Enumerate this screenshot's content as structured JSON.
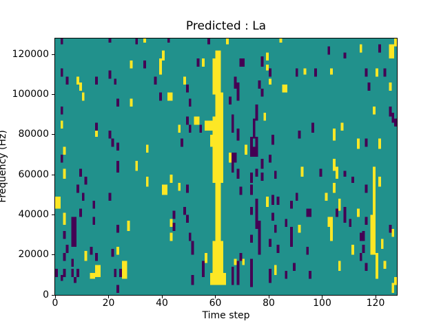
{
  "title": "Predicted : La",
  "xlabel": "Time step",
  "ylabel": "Frequency (Hz)",
  "chart_data": {
    "type": "heatmap",
    "title": "Predicted : La",
    "xlabel": "Time step",
    "ylabel": "Frequency (Hz)",
    "x_range": [
      0,
      128
    ],
    "y_range": [
      0,
      128000
    ],
    "grid_size": [
      128,
      128
    ],
    "x_ticks": [
      0,
      20,
      40,
      60,
      80,
      100,
      120
    ],
    "x_tick_labels": [
      "0",
      "20",
      "40",
      "60",
      "80",
      "100",
      "120"
    ],
    "y_ticks": [
      0,
      20000,
      40000,
      60000,
      80000,
      100000,
      120000
    ],
    "y_tick_labels": [
      "0",
      "20000",
      "40000",
      "60000",
      "80000",
      "100000",
      "120000"
    ],
    "legend": "none",
    "grid": false,
    "colors": {
      "background": "#21918c",
      "low": "#440154",
      "high": "#fde725",
      "figure_background": "#ffffff",
      "text": "#000000"
    },
    "value_legend": {
      "background_value": "mid",
      "low_value": "min",
      "high_value": "max"
    },
    "cells_high": [
      [
        60,
        61,
        117,
        121
      ],
      [
        59,
        61,
        100,
        117
      ],
      [
        60,
        62,
        88,
        100
      ],
      [
        59,
        62,
        56,
        88
      ],
      [
        60,
        61,
        26,
        56
      ],
      [
        59,
        62,
        10,
        26
      ],
      [
        58,
        63,
        5,
        10
      ],
      [
        33,
        33,
        126,
        127
      ],
      [
        40,
        40,
        117,
        121
      ],
      [
        39,
        39,
        110,
        117
      ],
      [
        28,
        28,
        113,
        116
      ],
      [
        8,
        8,
        105,
        108
      ],
      [
        9,
        9,
        102,
        105
      ],
      [
        10,
        10,
        97,
        100
      ],
      [
        28,
        28,
        94,
        97
      ],
      [
        42,
        43,
        97,
        100
      ],
      [
        2,
        2,
        83,
        86
      ],
      [
        15,
        15,
        79,
        81
      ],
      [
        3,
        3,
        70,
        73
      ],
      [
        34,
        34,
        71,
        74
      ],
      [
        30,
        30,
        62,
        66
      ],
      [
        64,
        64,
        125,
        127
      ],
      [
        84,
        84,
        126,
        127
      ],
      [
        55,
        55,
        114,
        117
      ],
      [
        79,
        79,
        117,
        120
      ],
      [
        79,
        79,
        112,
        114
      ],
      [
        48,
        48,
        105,
        108
      ],
      [
        80,
        80,
        105,
        107
      ],
      [
        85,
        86,
        101,
        104
      ],
      [
        78,
        78,
        87,
        90
      ],
      [
        52,
        53,
        85,
        88
      ],
      [
        46,
        46,
        81,
        84
      ],
      [
        56,
        58,
        82,
        86
      ],
      [
        58,
        58,
        74,
        79
      ],
      [
        71,
        71,
        70,
        74
      ],
      [
        65,
        65,
        66,
        70
      ],
      [
        43,
        43,
        56,
        59
      ],
      [
        46,
        46,
        52,
        55
      ],
      [
        56,
        56,
        16,
        20
      ],
      [
        67,
        67,
        15,
        17
      ],
      [
        70,
        70,
        15,
        17
      ],
      [
        79,
        79,
        44,
        48
      ],
      [
        82,
        82,
        10,
        14
      ],
      [
        43,
        43,
        34,
        37
      ],
      [
        43,
        43,
        27,
        30
      ],
      [
        114,
        114,
        121,
        124
      ],
      [
        125,
        126,
        118,
        124
      ],
      [
        127,
        127,
        124,
        127
      ],
      [
        93,
        93,
        110,
        112
      ],
      [
        103,
        103,
        110,
        112
      ],
      [
        120,
        120,
        109,
        112
      ],
      [
        86,
        86,
        102,
        104
      ],
      [
        125,
        125,
        102,
        105
      ],
      [
        119,
        119,
        90,
        93
      ],
      [
        107,
        107,
        82,
        85
      ],
      [
        104,
        104,
        77,
        82
      ],
      [
        113,
        113,
        73,
        77
      ],
      [
        121,
        121,
        73,
        77
      ],
      [
        104,
        104,
        64,
        67
      ],
      [
        3,
        3,
        58,
        62
      ],
      [
        34,
        34,
        54,
        58
      ],
      [
        40,
        41,
        50,
        54
      ],
      [
        0,
        1,
        43,
        48
      ],
      [
        3,
        3,
        35,
        40
      ],
      [
        27,
        27,
        32,
        36
      ],
      [
        11,
        11,
        17,
        21
      ],
      [
        23,
        23,
        20,
        23
      ],
      [
        15,
        16,
        9,
        14
      ],
      [
        25,
        26,
        8,
        16
      ],
      [
        13,
        14,
        8,
        10
      ],
      [
        92,
        92,
        59,
        63
      ],
      [
        104,
        104,
        62,
        66
      ],
      [
        105,
        105,
        58,
        63
      ],
      [
        121,
        121,
        54,
        58
      ],
      [
        119,
        119,
        37,
        63
      ],
      [
        118,
        119,
        20,
        39
      ],
      [
        120,
        120,
        8,
        20
      ],
      [
        104,
        104,
        51,
        55
      ],
      [
        101,
        101,
        47,
        50
      ],
      [
        106,
        106,
        42,
        47
      ],
      [
        102,
        103,
        34,
        38
      ],
      [
        103,
        103,
        27,
        34
      ],
      [
        113,
        113,
        39,
        42
      ],
      [
        118,
        118,
        36,
        38
      ],
      [
        91,
        91,
        31,
        34
      ],
      [
        111,
        111,
        20,
        24
      ],
      [
        122,
        122,
        23,
        27
      ],
      [
        106,
        106,
        12,
        16
      ],
      [
        123,
        123,
        13,
        16
      ],
      [
        126,
        126,
        29,
        32
      ],
      [
        126,
        126,
        1,
        5
      ],
      [
        127,
        127,
        5,
        8
      ]
    ],
    "cells_low": [
      [
        2,
        2,
        125,
        127
      ],
      [
        30,
        30,
        125,
        127
      ],
      [
        20,
        20,
        126,
        127
      ],
      [
        42,
        42,
        126,
        127
      ],
      [
        33,
        33,
        113,
        116
      ],
      [
        2,
        2,
        109,
        112
      ],
      [
        4,
        4,
        105,
        108
      ],
      [
        15,
        15,
        105,
        108
      ],
      [
        20,
        20,
        108,
        111
      ],
      [
        22,
        22,
        105,
        107
      ],
      [
        37,
        37,
        105,
        108
      ],
      [
        39,
        39,
        97,
        100
      ],
      [
        23,
        23,
        94,
        97
      ],
      [
        2,
        2,
        90,
        93
      ],
      [
        15,
        15,
        82,
        85
      ],
      [
        20,
        20,
        78,
        81
      ],
      [
        21,
        21,
        74,
        77
      ],
      [
        23,
        23,
        72,
        75
      ],
      [
        2,
        2,
        66,
        69
      ],
      [
        23,
        23,
        61,
        66
      ],
      [
        57,
        57,
        125,
        127
      ],
      [
        53,
        53,
        114,
        117
      ],
      [
        69,
        70,
        114,
        117
      ],
      [
        77,
        77,
        114,
        118
      ],
      [
        80,
        80,
        109,
        112
      ],
      [
        49,
        49,
        101,
        104
      ],
      [
        67,
        67,
        103,
        108
      ],
      [
        68,
        68,
        97,
        105
      ],
      [
        76,
        76,
        103,
        106
      ],
      [
        77,
        77,
        99,
        102
      ],
      [
        65,
        65,
        95,
        98
      ],
      [
        50,
        50,
        94,
        97
      ],
      [
        75,
        75,
        87,
        94
      ],
      [
        74,
        74,
        78,
        87
      ],
      [
        73,
        73,
        71,
        78
      ],
      [
        75,
        75,
        73,
        78
      ],
      [
        73,
        75,
        69,
        73
      ],
      [
        49,
        49,
        85,
        88
      ],
      [
        50,
        50,
        81,
        84
      ],
      [
        54,
        54,
        81,
        84
      ],
      [
        66,
        66,
        81,
        89
      ],
      [
        68,
        68,
        77,
        82
      ],
      [
        47,
        47,
        74,
        77
      ],
      [
        81,
        81,
        75,
        79
      ],
      [
        66,
        67,
        66,
        70
      ],
      [
        80,
        80,
        66,
        69
      ],
      [
        77,
        77,
        63,
        67
      ],
      [
        102,
        102,
        120,
        123
      ],
      [
        121,
        121,
        121,
        124
      ],
      [
        108,
        108,
        118,
        120
      ],
      [
        90,
        90,
        109,
        112
      ],
      [
        97,
        97,
        109,
        112
      ],
      [
        116,
        116,
        109,
        112
      ],
      [
        123,
        123,
        109,
        112
      ],
      [
        117,
        117,
        102,
        105
      ],
      [
        125,
        125,
        89,
        93
      ],
      [
        126,
        126,
        86,
        90
      ],
      [
        127,
        127,
        84,
        87
      ],
      [
        96,
        96,
        81,
        85
      ],
      [
        91,
        91,
        78,
        81
      ],
      [
        116,
        116,
        74,
        77
      ],
      [
        9,
        9,
        59,
        62
      ],
      [
        11,
        11,
        55,
        58
      ],
      [
        8,
        8,
        51,
        54
      ],
      [
        10,
        10,
        47,
        50
      ],
      [
        20,
        20,
        47,
        50
      ],
      [
        14,
        14,
        43,
        46
      ],
      [
        9,
        9,
        39,
        42
      ],
      [
        6,
        7,
        24,
        38
      ],
      [
        14,
        14,
        35,
        38
      ],
      [
        23,
        23,
        31,
        34
      ],
      [
        3,
        3,
        28,
        31
      ],
      [
        4,
        4,
        21,
        24
      ],
      [
        3,
        3,
        17,
        20
      ],
      [
        6,
        6,
        14,
        17
      ],
      [
        13,
        13,
        20,
        23
      ],
      [
        15,
        15,
        17,
        20
      ],
      [
        21,
        21,
        19,
        22
      ],
      [
        22,
        22,
        9,
        12
      ],
      [
        24,
        24,
        9,
        12
      ],
      [
        3,
        3,
        9,
        12
      ],
      [
        0,
        0,
        9,
        12
      ],
      [
        6,
        6,
        9,
        12
      ],
      [
        8,
        8,
        9,
        12
      ],
      [
        23,
        23,
        1,
        4
      ],
      [
        2,
        2,
        7,
        9
      ],
      [
        7,
        7,
        6,
        8
      ],
      [
        49,
        49,
        51,
        54
      ],
      [
        44,
        44,
        38,
        41
      ],
      [
        48,
        48,
        40,
        43
      ],
      [
        49,
        49,
        36,
        39
      ],
      [
        44,
        44,
        32,
        35
      ],
      [
        50,
        50,
        27,
        30
      ],
      [
        51,
        51,
        20,
        26
      ],
      [
        55,
        55,
        9,
        16
      ],
      [
        51,
        51,
        5,
        9
      ],
      [
        66,
        66,
        61,
        67
      ],
      [
        68,
        68,
        58,
        62
      ],
      [
        73,
        73,
        56,
        60
      ],
      [
        75,
        75,
        59,
        62
      ],
      [
        77,
        77,
        57,
        60
      ],
      [
        82,
        82,
        58,
        61
      ],
      [
        69,
        69,
        50,
        53
      ],
      [
        73,
        73,
        50,
        54
      ],
      [
        75,
        75,
        33,
        47
      ],
      [
        76,
        76,
        20,
        36
      ],
      [
        73,
        73,
        40,
        43
      ],
      [
        73,
        73,
        26,
        29
      ],
      [
        73,
        73,
        4,
        17
      ],
      [
        66,
        66,
        5,
        13
      ],
      [
        68,
        68,
        5,
        16
      ],
      [
        69,
        69,
        17,
        20
      ],
      [
        80,
        80,
        6,
        12
      ],
      [
        81,
        81,
        37,
        40
      ],
      [
        81,
        81,
        45,
        49
      ],
      [
        83,
        83,
        45,
        48
      ],
      [
        82,
        82,
        31,
        34
      ],
      [
        80,
        80,
        24,
        27
      ],
      [
        83,
        83,
        21,
        24
      ],
      [
        86,
        86,
        8,
        11
      ],
      [
        99,
        99,
        59,
        62
      ],
      [
        108,
        108,
        59,
        61
      ],
      [
        111,
        111,
        56,
        58
      ],
      [
        116,
        116,
        51,
        54
      ],
      [
        88,
        88,
        43,
        46
      ],
      [
        90,
        90,
        47,
        50
      ],
      [
        94,
        95,
        39,
        42
      ],
      [
        105,
        105,
        39,
        42
      ],
      [
        108,
        108,
        36,
        43
      ],
      [
        110,
        110,
        34,
        37
      ],
      [
        116,
        116,
        35,
        38
      ],
      [
        86,
        86,
        34,
        37
      ],
      [
        88,
        88,
        24,
        33
      ],
      [
        125,
        125,
        31,
        34
      ],
      [
        115,
        115,
        27,
        31
      ],
      [
        115,
        115,
        21,
        24
      ],
      [
        94,
        94,
        20,
        23
      ],
      [
        89,
        89,
        12,
        15
      ],
      [
        95,
        95,
        8,
        11
      ],
      [
        116,
        116,
        12,
        15
      ],
      [
        114,
        114,
        27,
        30
      ],
      [
        114,
        114,
        17,
        20
      ]
    ]
  }
}
